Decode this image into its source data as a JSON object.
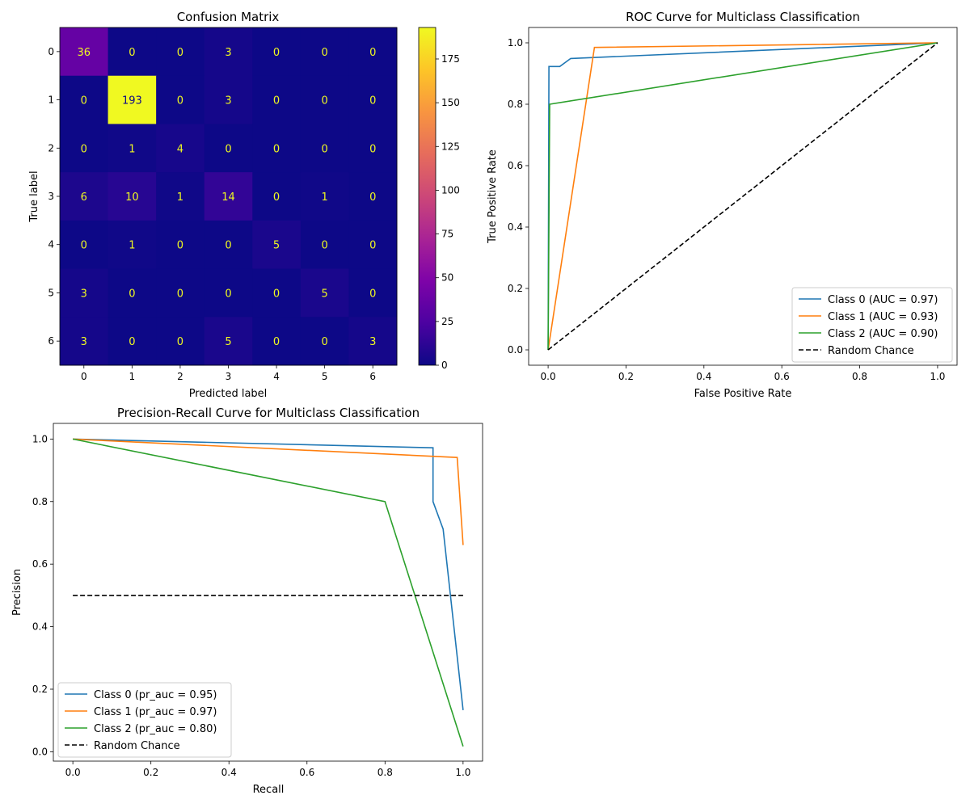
{
  "chart_data": [
    {
      "type": "heatmap",
      "title": "Confusion Matrix",
      "xlabel": "Predicted label",
      "ylabel": "True label",
      "x_ticks": [
        "0",
        "1",
        "2",
        "3",
        "4",
        "5",
        "6"
      ],
      "y_ticks": [
        "0",
        "1",
        "2",
        "3",
        "4",
        "5",
        "6"
      ],
      "matrix": [
        [
          36,
          0,
          0,
          3,
          0,
          0,
          0
        ],
        [
          0,
          193,
          0,
          3,
          0,
          0,
          0
        ],
        [
          0,
          1,
          4,
          0,
          0,
          0,
          0
        ],
        [
          6,
          10,
          1,
          14,
          0,
          1,
          0
        ],
        [
          0,
          1,
          0,
          0,
          5,
          0,
          0
        ],
        [
          3,
          0,
          0,
          0,
          0,
          5,
          0
        ],
        [
          3,
          0,
          0,
          5,
          0,
          0,
          3
        ]
      ],
      "colormap": "plasma",
      "colorbar": {
        "min": 0,
        "max": 193,
        "ticks": [
          0,
          25,
          50,
          75,
          100,
          125,
          150,
          175
        ]
      }
    },
    {
      "type": "line",
      "title": "ROC Curve for Multiclass Classification",
      "xlabel": "False Positive Rate",
      "ylabel": "True Positive Rate",
      "xlim": [
        -0.05,
        1.05
      ],
      "ylim": [
        -0.05,
        1.05
      ],
      "xticks": [
        "0.0",
        "0.2",
        "0.4",
        "0.6",
        "0.8",
        "1.0"
      ],
      "yticks": [
        "0.0",
        "0.2",
        "0.4",
        "0.6",
        "0.8",
        "1.0"
      ],
      "legend_position": "lower-right",
      "series": [
        {
          "name": "Class 0 (AUC = 0.97)",
          "color": "#1f77b4",
          "dash": false,
          "points": [
            [
              0,
              0
            ],
            [
              0.002,
              0.923
            ],
            [
              0.03,
              0.923
            ],
            [
              0.058,
              0.949
            ],
            [
              1,
              1
            ]
          ]
        },
        {
          "name": "Class 1 (AUC = 0.93)",
          "color": "#ff7f0e",
          "dash": false,
          "points": [
            [
              0,
              0
            ],
            [
              0.119,
              0.985
            ],
            [
              1,
              1
            ]
          ]
        },
        {
          "name": "Class 2 (AUC = 0.90)",
          "color": "#2ca02c",
          "dash": false,
          "points": [
            [
              0,
              0
            ],
            [
              0.004,
              0.8
            ],
            [
              1,
              1
            ]
          ]
        },
        {
          "name": "Random Chance",
          "color": "#000000",
          "dash": true,
          "points": [
            [
              0,
              0
            ],
            [
              1,
              1
            ]
          ]
        }
      ]
    },
    {
      "type": "line",
      "title": "Precision-Recall Curve for Multiclass Classification",
      "xlabel": "Recall",
      "ylabel": "Precision",
      "xlim": [
        -0.05,
        1.05
      ],
      "ylim": [
        -0.03,
        1.05
      ],
      "xticks": [
        "0.0",
        "0.2",
        "0.4",
        "0.6",
        "0.8",
        "1.0"
      ],
      "yticks": [
        "0.0",
        "0.2",
        "0.4",
        "0.6",
        "0.8",
        "1.0"
      ],
      "legend_position": "lower-left",
      "series": [
        {
          "name": "Class 0 (pr_auc = 0.95)",
          "color": "#1f77b4",
          "dash": false,
          "points": [
            [
              0,
              1.0
            ],
            [
              0.923,
              0.972
            ],
            [
              0.923,
              0.8
            ],
            [
              0.949,
              0.712
            ],
            [
              1,
              0.133
            ]
          ]
        },
        {
          "name": "Class 1 (pr_auc = 0.97)",
          "color": "#ff7f0e",
          "dash": false,
          "points": [
            [
              0,
              1.0
            ],
            [
              0.985,
              0.941
            ],
            [
              1,
              0.661
            ]
          ]
        },
        {
          "name": "Class 2 (pr_auc = 0.80)",
          "color": "#2ca02c",
          "dash": false,
          "points": [
            [
              0,
              1.0
            ],
            [
              0.8,
              0.8
            ],
            [
              1,
              0.017
            ]
          ]
        },
        {
          "name": "Random Chance",
          "color": "#000000",
          "dash": true,
          "points": [
            [
              0,
              0.5
            ],
            [
              1,
              0.5
            ]
          ]
        }
      ]
    }
  ]
}
